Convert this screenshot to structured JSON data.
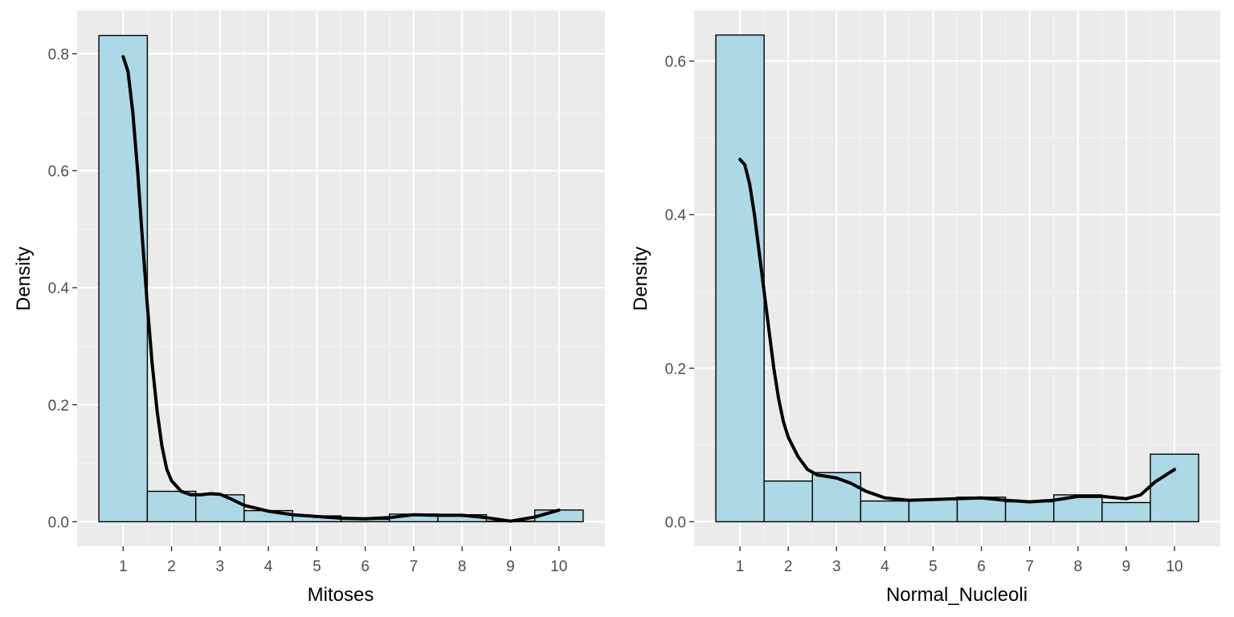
{
  "colors": {
    "panel_background": "#ebebeb",
    "grid_major": "#ffffff",
    "grid_minor": "#f5f5f5",
    "bar_fill": "#add8e6",
    "bar_outline": "#000000",
    "density_line": "#000000",
    "tick_text": "#4d4d4d",
    "axis_title": "#000000"
  },
  "chart_data": [
    {
      "type": "bar",
      "overlay": "density line",
      "title": "",
      "xlabel": "Mitoses",
      "ylabel": "Density",
      "categories": [
        "1",
        "2",
        "3",
        "4",
        "5",
        "6",
        "7",
        "8",
        "9",
        "10"
      ],
      "x_ticks": [
        1,
        2,
        3,
        4,
        5,
        6,
        7,
        8,
        9,
        10
      ],
      "y_ticks": [
        0.0,
        0.2,
        0.4,
        0.6,
        0.8
      ],
      "y_tick_labels": [
        "0.0",
        "0.2",
        "0.4",
        "0.6",
        "0.8"
      ],
      "ylim": [
        -0.042,
        0.874
      ],
      "xlim": [
        0.05,
        10.95
      ],
      "grid": true,
      "legend": "none",
      "series": [
        {
          "kind": "histogram",
          "values": [
            0.831,
            0.052,
            0.046,
            0.019,
            0.01,
            0.004,
            0.013,
            0.012,
            0.001,
            0.02
          ]
        },
        {
          "kind": "density",
          "x": [
            1.0,
            1.1,
            1.2,
            1.3,
            1.4,
            1.5,
            1.6,
            1.7,
            1.8,
            1.9,
            2.0,
            2.2,
            2.4,
            2.6,
            2.8,
            3.0,
            3.2,
            3.5,
            4.0,
            4.5,
            5.0,
            5.5,
            6.0,
            6.5,
            7.0,
            7.5,
            8.0,
            8.5,
            9.0,
            9.5,
            10.0
          ],
          "y": [
            0.795,
            0.77,
            0.7,
            0.6,
            0.48,
            0.37,
            0.27,
            0.19,
            0.13,
            0.09,
            0.07,
            0.052,
            0.046,
            0.046,
            0.048,
            0.047,
            0.04,
            0.028,
            0.018,
            0.012,
            0.009,
            0.006,
            0.005,
            0.007,
            0.012,
            0.011,
            0.011,
            0.007,
            0.001,
            0.008,
            0.02
          ]
        }
      ]
    },
    {
      "type": "bar",
      "overlay": "density line",
      "title": "",
      "xlabel": "Normal_Nucleoli",
      "ylabel": "Density",
      "categories": [
        "1",
        "2",
        "3",
        "4",
        "5",
        "6",
        "7",
        "8",
        "9",
        "10"
      ],
      "x_ticks": [
        1,
        2,
        3,
        4,
        5,
        6,
        7,
        8,
        9,
        10
      ],
      "y_ticks": [
        0.0,
        0.2,
        0.4,
        0.6
      ],
      "y_tick_labels": [
        "0.0",
        "0.2",
        "0.4",
        "0.6"
      ],
      "ylim": [
        -0.032,
        0.666
      ],
      "xlim": [
        0.05,
        10.95
      ],
      "grid": true,
      "legend": "none",
      "series": [
        {
          "kind": "histogram",
          "values": [
            0.634,
            0.053,
            0.064,
            0.027,
            0.029,
            0.032,
            0.026,
            0.035,
            0.025,
            0.088
          ]
        },
        {
          "kind": "density",
          "x": [
            1.0,
            1.1,
            1.2,
            1.3,
            1.4,
            1.5,
            1.6,
            1.7,
            1.8,
            1.9,
            2.0,
            2.2,
            2.4,
            2.6,
            2.8,
            3.0,
            3.3,
            3.6,
            4.0,
            4.5,
            5.0,
            5.5,
            6.0,
            6.5,
            7.0,
            7.5,
            8.0,
            8.5,
            9.0,
            9.3,
            9.6,
            10.0
          ],
          "y": [
            0.472,
            0.465,
            0.44,
            0.4,
            0.35,
            0.3,
            0.25,
            0.2,
            0.16,
            0.13,
            0.11,
            0.085,
            0.068,
            0.061,
            0.059,
            0.057,
            0.05,
            0.04,
            0.031,
            0.028,
            0.029,
            0.03,
            0.031,
            0.028,
            0.026,
            0.028,
            0.033,
            0.033,
            0.03,
            0.035,
            0.052,
            0.068
          ]
        }
      ]
    }
  ]
}
